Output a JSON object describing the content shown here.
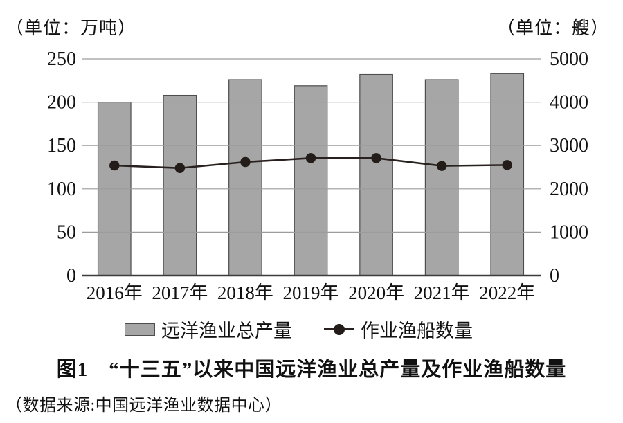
{
  "chart_data": {
    "type": "bar",
    "subtype": "bar-line-combo",
    "categories": [
      "2016年",
      "2017年",
      "2018年",
      "2019年",
      "2020年",
      "2021年",
      "2022年"
    ],
    "series": [
      {
        "name": "远洋渔业总产量",
        "type": "bar",
        "axis": "left",
        "unit": "万吨",
        "values": [
          200,
          208,
          226,
          219,
          232,
          226,
          233
        ],
        "color": "#a6a6a6",
        "border_color": "#4d4d4d"
      },
      {
        "name": "作业渔船数量",
        "type": "line",
        "axis": "right",
        "unit": "艘",
        "values": [
          2540,
          2480,
          2620,
          2710,
          2710,
          2530,
          2550
        ],
        "color": "#29211f",
        "marker": "filled-circle"
      }
    ],
    "left_axis": {
      "label": "（单位：万吨）",
      "min": 0,
      "max": 250,
      "ticks": [
        0,
        50,
        100,
        150,
        200,
        250
      ]
    },
    "right_axis": {
      "label": "（单位：艘）",
      "min": 0,
      "max": 5000,
      "ticks": [
        0,
        1000,
        2000,
        3000,
        4000,
        5000
      ]
    },
    "grid": true,
    "gridline_color": "#9c9c9c",
    "baseline_color": "#3c3c3c",
    "legend_position": "bottom"
  },
  "legend": {
    "items": [
      {
        "label": "远洋渔业总产量",
        "marker": "bar-swatch"
      },
      {
        "label": "作业渔船数量",
        "marker": "line-dot"
      }
    ]
  },
  "caption": {
    "title": "图1　“十三五”以来中国远洋渔业总产量及作业渔船数量",
    "source": "（数据来源:中国远洋渔业数据中心）"
  }
}
